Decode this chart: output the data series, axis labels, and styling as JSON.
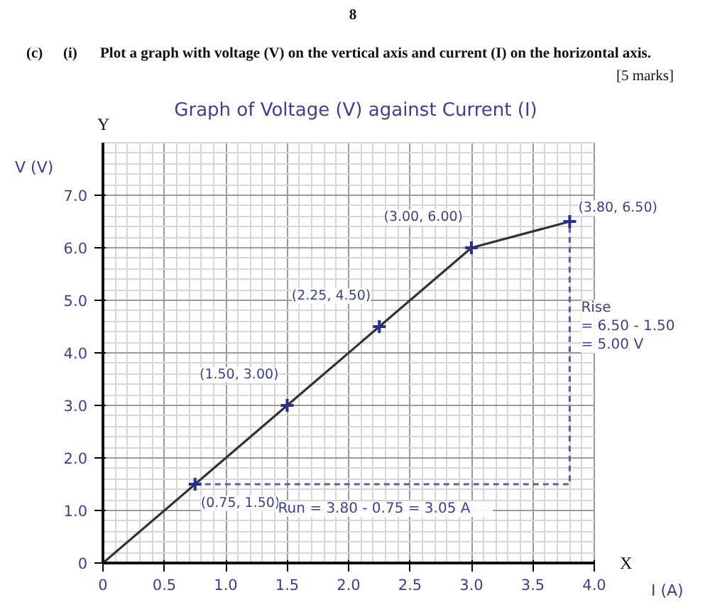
{
  "chart_data": {
    "type": "scatter",
    "title": "Graph of Voltage (V) against Current (I)",
    "xlabel": "I (A)",
    "ylabel": "V (V)",
    "xlim": [
      0,
      4
    ],
    "ylim": [
      0,
      8
    ],
    "xticks": [
      0,
      0.5,
      {
        "value": 1,
        "label": "1.0"
      },
      1.5,
      {
        "value": 2,
        "label": "2.0"
      },
      2.5,
      {
        "value": 3,
        "label": "3.0"
      },
      3.5,
      {
        "value": 4,
        "label": "4.0"
      }
    ],
    "yticks": [
      0,
      {
        "value": 1,
        "label": "1.0"
      },
      {
        "value": 2,
        "label": "2.0"
      },
      {
        "value": 3,
        "label": "3.0"
      },
      {
        "value": 4,
        "label": "4.0"
      },
      {
        "value": 5,
        "label": "5.0"
      },
      {
        "value": 6,
        "label": "6.0"
      },
      {
        "value": 7,
        "label": "7.0"
      }
    ],
    "grid": true,
    "series": [
      {
        "type": "line",
        "color": "#333333",
        "line_style": "solid",
        "x": [
          0,
          0.75,
          1.5,
          2.25,
          3.0,
          3.8
        ],
        "values": [
          0,
          1.5,
          3.0,
          4.5,
          6.0,
          6.5
        ]
      },
      {
        "type": "line",
        "color": "#5a5fb0",
        "line_style": "dashed",
        "x": [
          0.75,
          3.8,
          3.8
        ],
        "values": [
          1.5,
          1.5,
          6.5
        ]
      },
      {
        "color": "#2b2f8f",
        "marker": "cross",
        "x": [
          0.75,
          1.5,
          2.25,
          3.0,
          3.8
        ],
        "values": [
          1.5,
          3.0,
          4.5,
          6.0,
          6.5
        ],
        "value_labels": [
          "(0.75, 1.50)",
          "(1.50, 3.00)",
          "(2.25, 4.50)",
          "(3.00, 6.00)",
          "(3.80, 6.50)"
        ]
      }
    ],
    "annotations": [
      "8",
      "(c)",
      "(i)",
      "Plot a graph with voltage (V) on the vertical axis and current (I) on the horizontal axis.",
      "[5 marks]",
      "Y",
      "X",
      {
        "text": "Rise\n= 6.50 - 1.50\n= 5.00 V",
        "x": 3.8,
        "y": 4.5
      },
      {
        "text": "Run  =  3.80 - 0.75  =  3.05  A",
        "x": 2.3,
        "y": 1.5
      }
    ]
  }
}
